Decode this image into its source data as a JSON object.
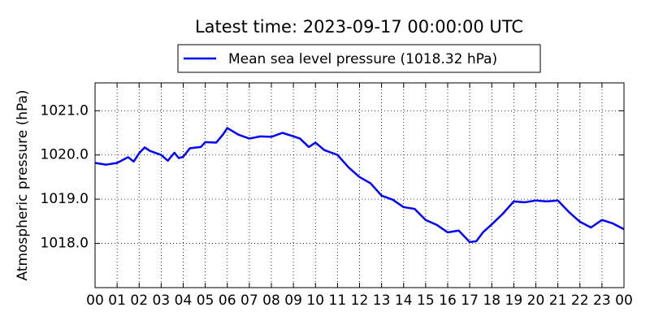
{
  "chart_data": {
    "type": "line",
    "title": "Latest time: 2023-09-17 00:00:00 UTC",
    "ylabel": "Atmospheric pressure (hPa)",
    "legend": "top",
    "grid": true,
    "xlim": [
      0,
      24
    ],
    "ylim": [
      1017.0,
      1021.63
    ],
    "xticks": [
      {
        "value": 0,
        "label": "00"
      },
      {
        "value": 1,
        "label": "01"
      },
      {
        "value": 2,
        "label": "02"
      },
      {
        "value": 3,
        "label": "03"
      },
      {
        "value": 4,
        "label": "04"
      },
      {
        "value": 5,
        "label": "05"
      },
      {
        "value": 6,
        "label": "06"
      },
      {
        "value": 7,
        "label": "07"
      },
      {
        "value": 8,
        "label": "08"
      },
      {
        "value": 9,
        "label": "09"
      },
      {
        "value": 10,
        "label": "10"
      },
      {
        "value": 11,
        "label": "11"
      },
      {
        "value": 12,
        "label": "12"
      },
      {
        "value": 13,
        "label": "13"
      },
      {
        "value": 14,
        "label": "14"
      },
      {
        "value": 15,
        "label": "15"
      },
      {
        "value": 16,
        "label": "16"
      },
      {
        "value": 17,
        "label": "17"
      },
      {
        "value": 18,
        "label": "18"
      },
      {
        "value": 19,
        "label": "19"
      },
      {
        "value": 20,
        "label": "20"
      },
      {
        "value": 21,
        "label": "21"
      },
      {
        "value": 22,
        "label": "22"
      },
      {
        "value": 23,
        "label": "23"
      },
      {
        "value": 24,
        "label": "00"
      }
    ],
    "yticks": [
      {
        "value": 1018,
        "label": "1018.0"
      },
      {
        "value": 1019,
        "label": "1019.0"
      },
      {
        "value": 1020,
        "label": "1020.0"
      },
      {
        "value": 1021,
        "label": "1021.0"
      }
    ],
    "x": [
      0,
      0.5,
      1,
      1.5,
      1.75,
      2,
      2.25,
      2.5,
      3,
      3.3,
      3.6,
      3.8,
      4,
      4.3,
      4.8,
      5,
      5.5,
      5.8,
      6,
      6.5,
      7,
      7.5,
      8,
      8.5,
      9,
      9.3,
      9.7,
      10,
      10.4,
      11,
      11.5,
      12,
      12.5,
      13,
      13.5,
      14,
      14.5,
      15,
      15.5,
      16,
      16.5,
      17,
      17.3,
      17.6,
      18,
      18.5,
      19,
      19.5,
      20,
      20.5,
      21,
      21.5,
      22,
      22.5,
      23,
      23.5,
      24
    ],
    "series": [
      {
        "name": "Mean sea level pressure (1018.32 hPa)",
        "color": "#0000ff",
        "values": [
          1019.82,
          1019.78,
          1019.82,
          1019.95,
          1019.85,
          1020.04,
          1020.17,
          1020.09,
          1020.0,
          1019.87,
          1020.05,
          1019.93,
          1019.96,
          1020.15,
          1020.18,
          1020.29,
          1020.28,
          1020.46,
          1020.61,
          1020.46,
          1020.37,
          1020.42,
          1020.41,
          1020.5,
          1020.42,
          1020.37,
          1020.18,
          1020.28,
          1020.11,
          1020.0,
          1019.72,
          1019.5,
          1019.36,
          1019.08,
          1018.99,
          1018.82,
          1018.78,
          1018.53,
          1018.42,
          1018.25,
          1018.29,
          1018.03,
          1018.05,
          1018.25,
          1018.43,
          1018.67,
          1018.95,
          1018.93,
          1018.97,
          1018.95,
          1018.97,
          1018.71,
          1018.49,
          1018.36,
          1018.53,
          1018.45,
          1018.32
        ]
      }
    ]
  }
}
